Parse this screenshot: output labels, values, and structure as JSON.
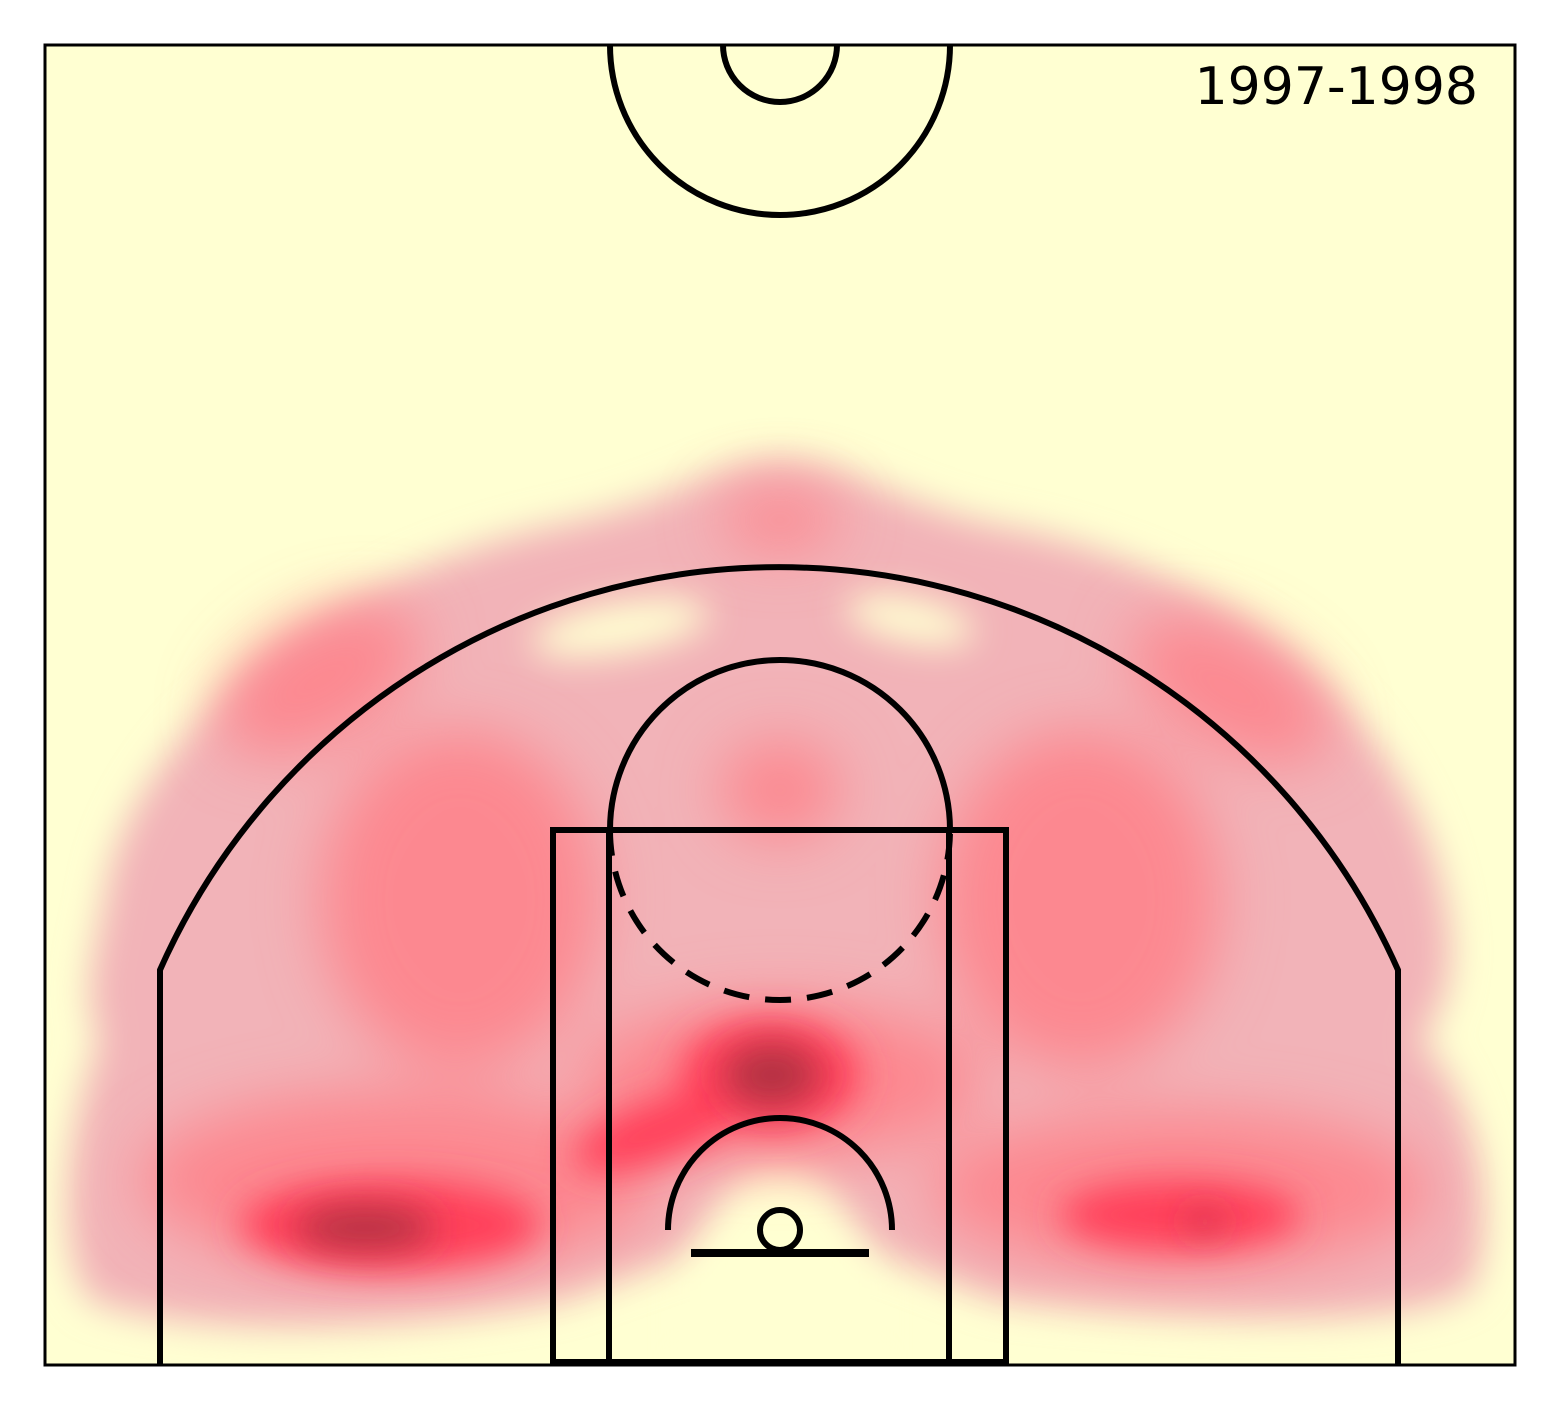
{
  "label": "1997-1998"
}
